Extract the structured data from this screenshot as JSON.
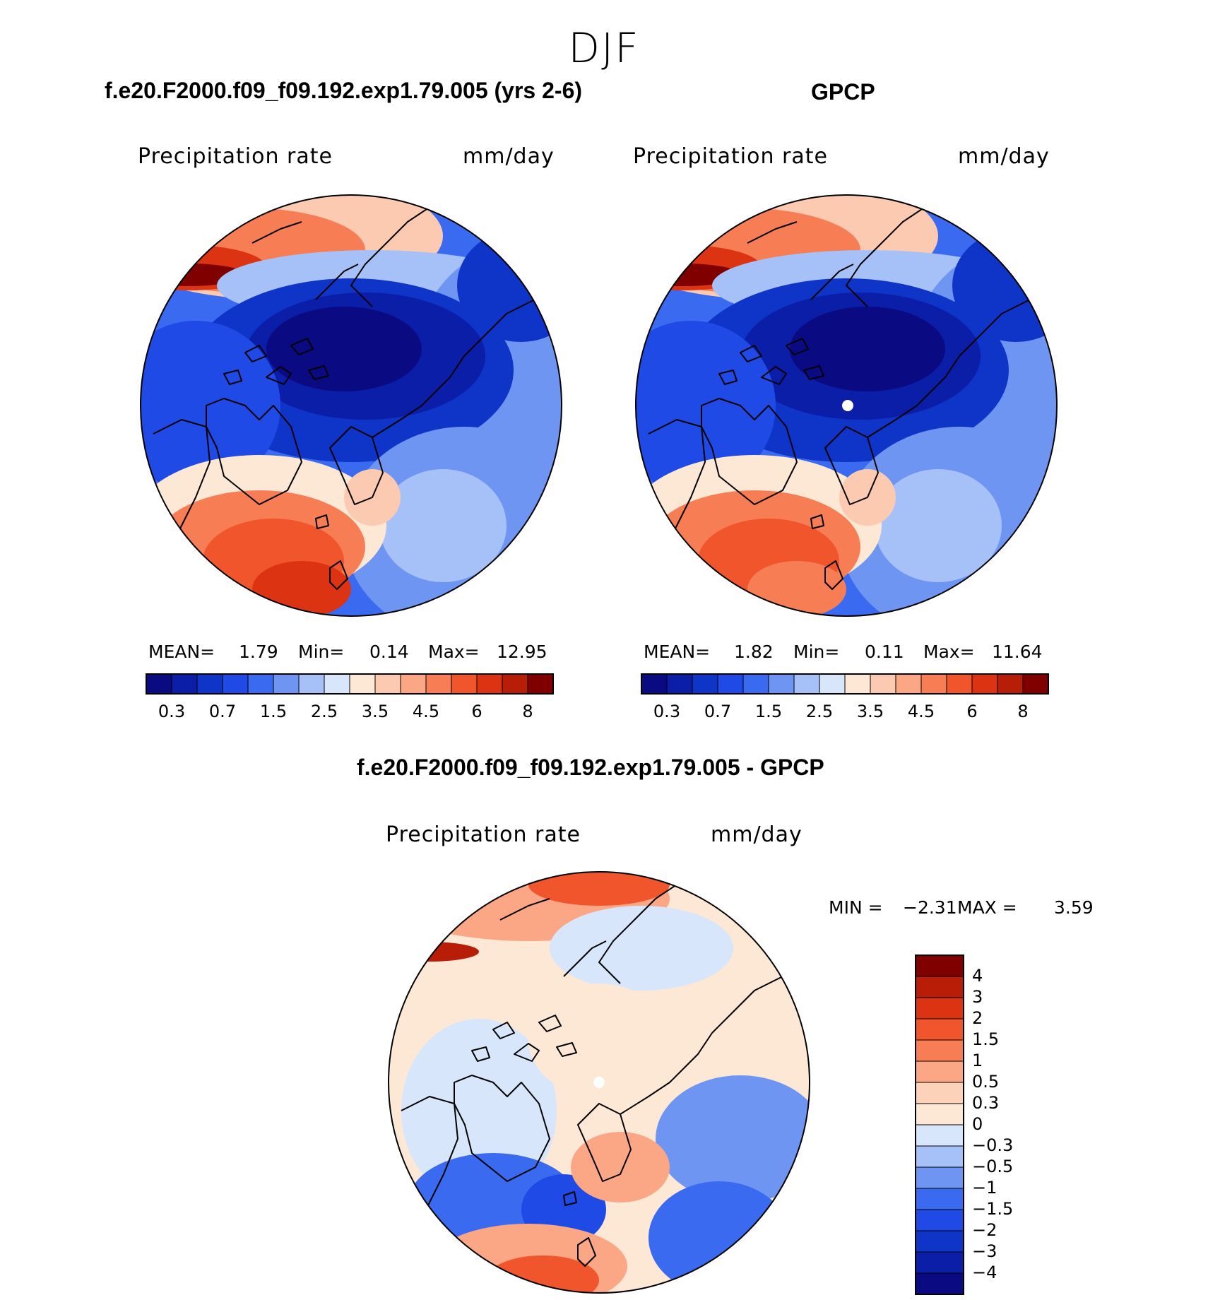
{
  "figure": {
    "season": "DJF",
    "model_title": "f.e20.F2000.f09_f09.192.exp1.79.005 (yrs 2-6)",
    "obs_title": "GPCP",
    "diff_title": "f.e20.F2000.f09_f09.192.exp1.79.005 - GPCP"
  },
  "panels": {
    "model": {
      "variable": "Precipitation rate",
      "units": "mm/day",
      "mean_label": "MEAN=",
      "mean": "1.79",
      "min_label": "Min=",
      "min": "0.14",
      "max_label": "Max=",
      "max": "12.95"
    },
    "obs": {
      "variable": "Precipitation rate",
      "units": "mm/day",
      "mean_label": "MEAN=",
      "mean": "1.82",
      "min_label": "Min=",
      "min": "0.11",
      "max_label": "Max=",
      "max": "11.64"
    },
    "diff": {
      "variable": "Precipitation rate",
      "units": "mm/day",
      "min_label": "MIN =",
      "min": "−2.31",
      "max_label": "MAX =",
      "max": "3.59"
    }
  },
  "colors": {
    "abs_scale": [
      "#0a0a82",
      "#0b1ea8",
      "#0f34c8",
      "#1f4ae6",
      "#3a6af0",
      "#6f95f2",
      "#a6c1f7",
      "#d7e6fb",
      "#fde8d6",
      "#fccab0",
      "#fba684",
      "#f77e54",
      "#f0552b",
      "#dc3412",
      "#b81d08",
      "#800000"
    ],
    "diff_scale": [
      "#800000",
      "#b81d08",
      "#dc3412",
      "#f0552b",
      "#f77e54",
      "#fba684",
      "#fcd2b8",
      "#fde8d6",
      "#d7e6fb",
      "#a6c1f7",
      "#6f95f2",
      "#3a6af0",
      "#1f4ae6",
      "#0f34c8",
      "#0b1ea8",
      "#0a0a82"
    ],
    "land_outline": "#000000",
    "pole_marker": "#ffffff"
  },
  "chart_data": [
    {
      "type": "heatmap",
      "projection": "north polar stereographic",
      "title": "f.e20.F2000.f09_f09.192.exp1.79.005 (yrs 2-6)",
      "variable": "Precipitation rate",
      "units": "mm/day",
      "mean": 1.79,
      "min": 0.14,
      "max": 12.95,
      "contour_levels": [
        0.2,
        0.3,
        0.5,
        0.7,
        1,
        1.5,
        2,
        2.5,
        3,
        3.5,
        4,
        4.5,
        5,
        6,
        7,
        8
      ],
      "colorbar_tick_labels": [
        "0.3",
        "0.7",
        "1.5",
        "2.5",
        "3.5",
        "4.5",
        "6",
        "8"
      ]
    },
    {
      "type": "heatmap",
      "projection": "north polar stereographic",
      "title": "GPCP",
      "variable": "Precipitation rate",
      "units": "mm/day",
      "mean": 1.82,
      "min": 0.11,
      "max": 11.64,
      "contour_levels": [
        0.2,
        0.3,
        0.5,
        0.7,
        1,
        1.5,
        2,
        2.5,
        3,
        3.5,
        4,
        4.5,
        5,
        6,
        7,
        8
      ],
      "colorbar_tick_labels": [
        "0.3",
        "0.7",
        "1.5",
        "2.5",
        "3.5",
        "4.5",
        "6",
        "8"
      ]
    },
    {
      "type": "heatmap",
      "projection": "north polar stereographic",
      "title": "f.e20.F2000.f09_f09.192.exp1.79.005 - GPCP",
      "variable": "Precipitation rate",
      "units": "mm/day",
      "min": -2.31,
      "max": 3.59,
      "contour_levels": [
        4,
        3,
        2,
        1.5,
        1,
        0.5,
        0.3,
        0,
        -0.3,
        -0.5,
        -1,
        -1.5,
        -2,
        -3,
        -4
      ],
      "colorbar_tick_labels": [
        "4",
        "3",
        "2",
        "1.5",
        "1",
        "0.5",
        "0.3",
        "0",
        "−0.3",
        "−0.5",
        "−1",
        "−1.5",
        "−2",
        "−3",
        "−4"
      ]
    }
  ]
}
